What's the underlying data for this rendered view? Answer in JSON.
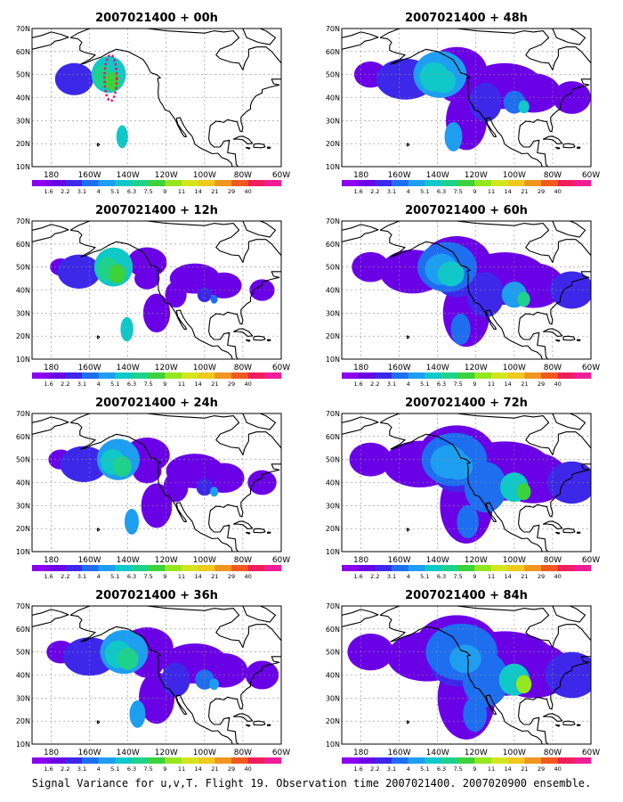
{
  "colors": {
    "scale": [
      "#8a00ee",
      "#6a00e6",
      "#3d28ea",
      "#1e6ef0",
      "#1e9ef0",
      "#10c8c8",
      "#1ed28c",
      "#3cd23c",
      "#96e61e",
      "#d2e61e",
      "#f0c81e",
      "#f0961e",
      "#f05a1e",
      "#f01e5a",
      "#f01e96"
    ],
    "land": "#000000",
    "grid": "#8c8c8c",
    "obs_track": "#e6147a"
  },
  "colorbar_labels": [
    "1.6",
    "2.2",
    "3.1",
    "4",
    "5.1",
    "6.3",
    "7.5",
    "9",
    "11",
    "14",
    "21",
    "29",
    "40"
  ],
  "lon_labels": [
    "180",
    "160W",
    "140W",
    "120W",
    "100W",
    "80W",
    "60W"
  ],
  "lat_labels": [
    "70N",
    "60N",
    "50N",
    "40N",
    "30N",
    "20N",
    "10N"
  ],
  "panels": [
    {
      "title": "2007021400 + 00h",
      "intensity": 0.0
    },
    {
      "title": "2007021400 + 48h",
      "intensity": 0.45
    },
    {
      "title": "2007021400 + 12h",
      "intensity": 0.1
    },
    {
      "title": "2007021400 + 60h",
      "intensity": 0.6
    },
    {
      "title": "2007021400 + 24h",
      "intensity": 0.2
    },
    {
      "title": "2007021400 + 72h",
      "intensity": 0.75
    },
    {
      "title": "2007021400 + 36h",
      "intensity": 0.32
    },
    {
      "title": "2007021400 + 84h",
      "intensity": 0.9
    }
  ],
  "caption": "Signal Variance for u,v,T. Flight 19. Observation time 2007021400. 2007020900 ensemble."
}
